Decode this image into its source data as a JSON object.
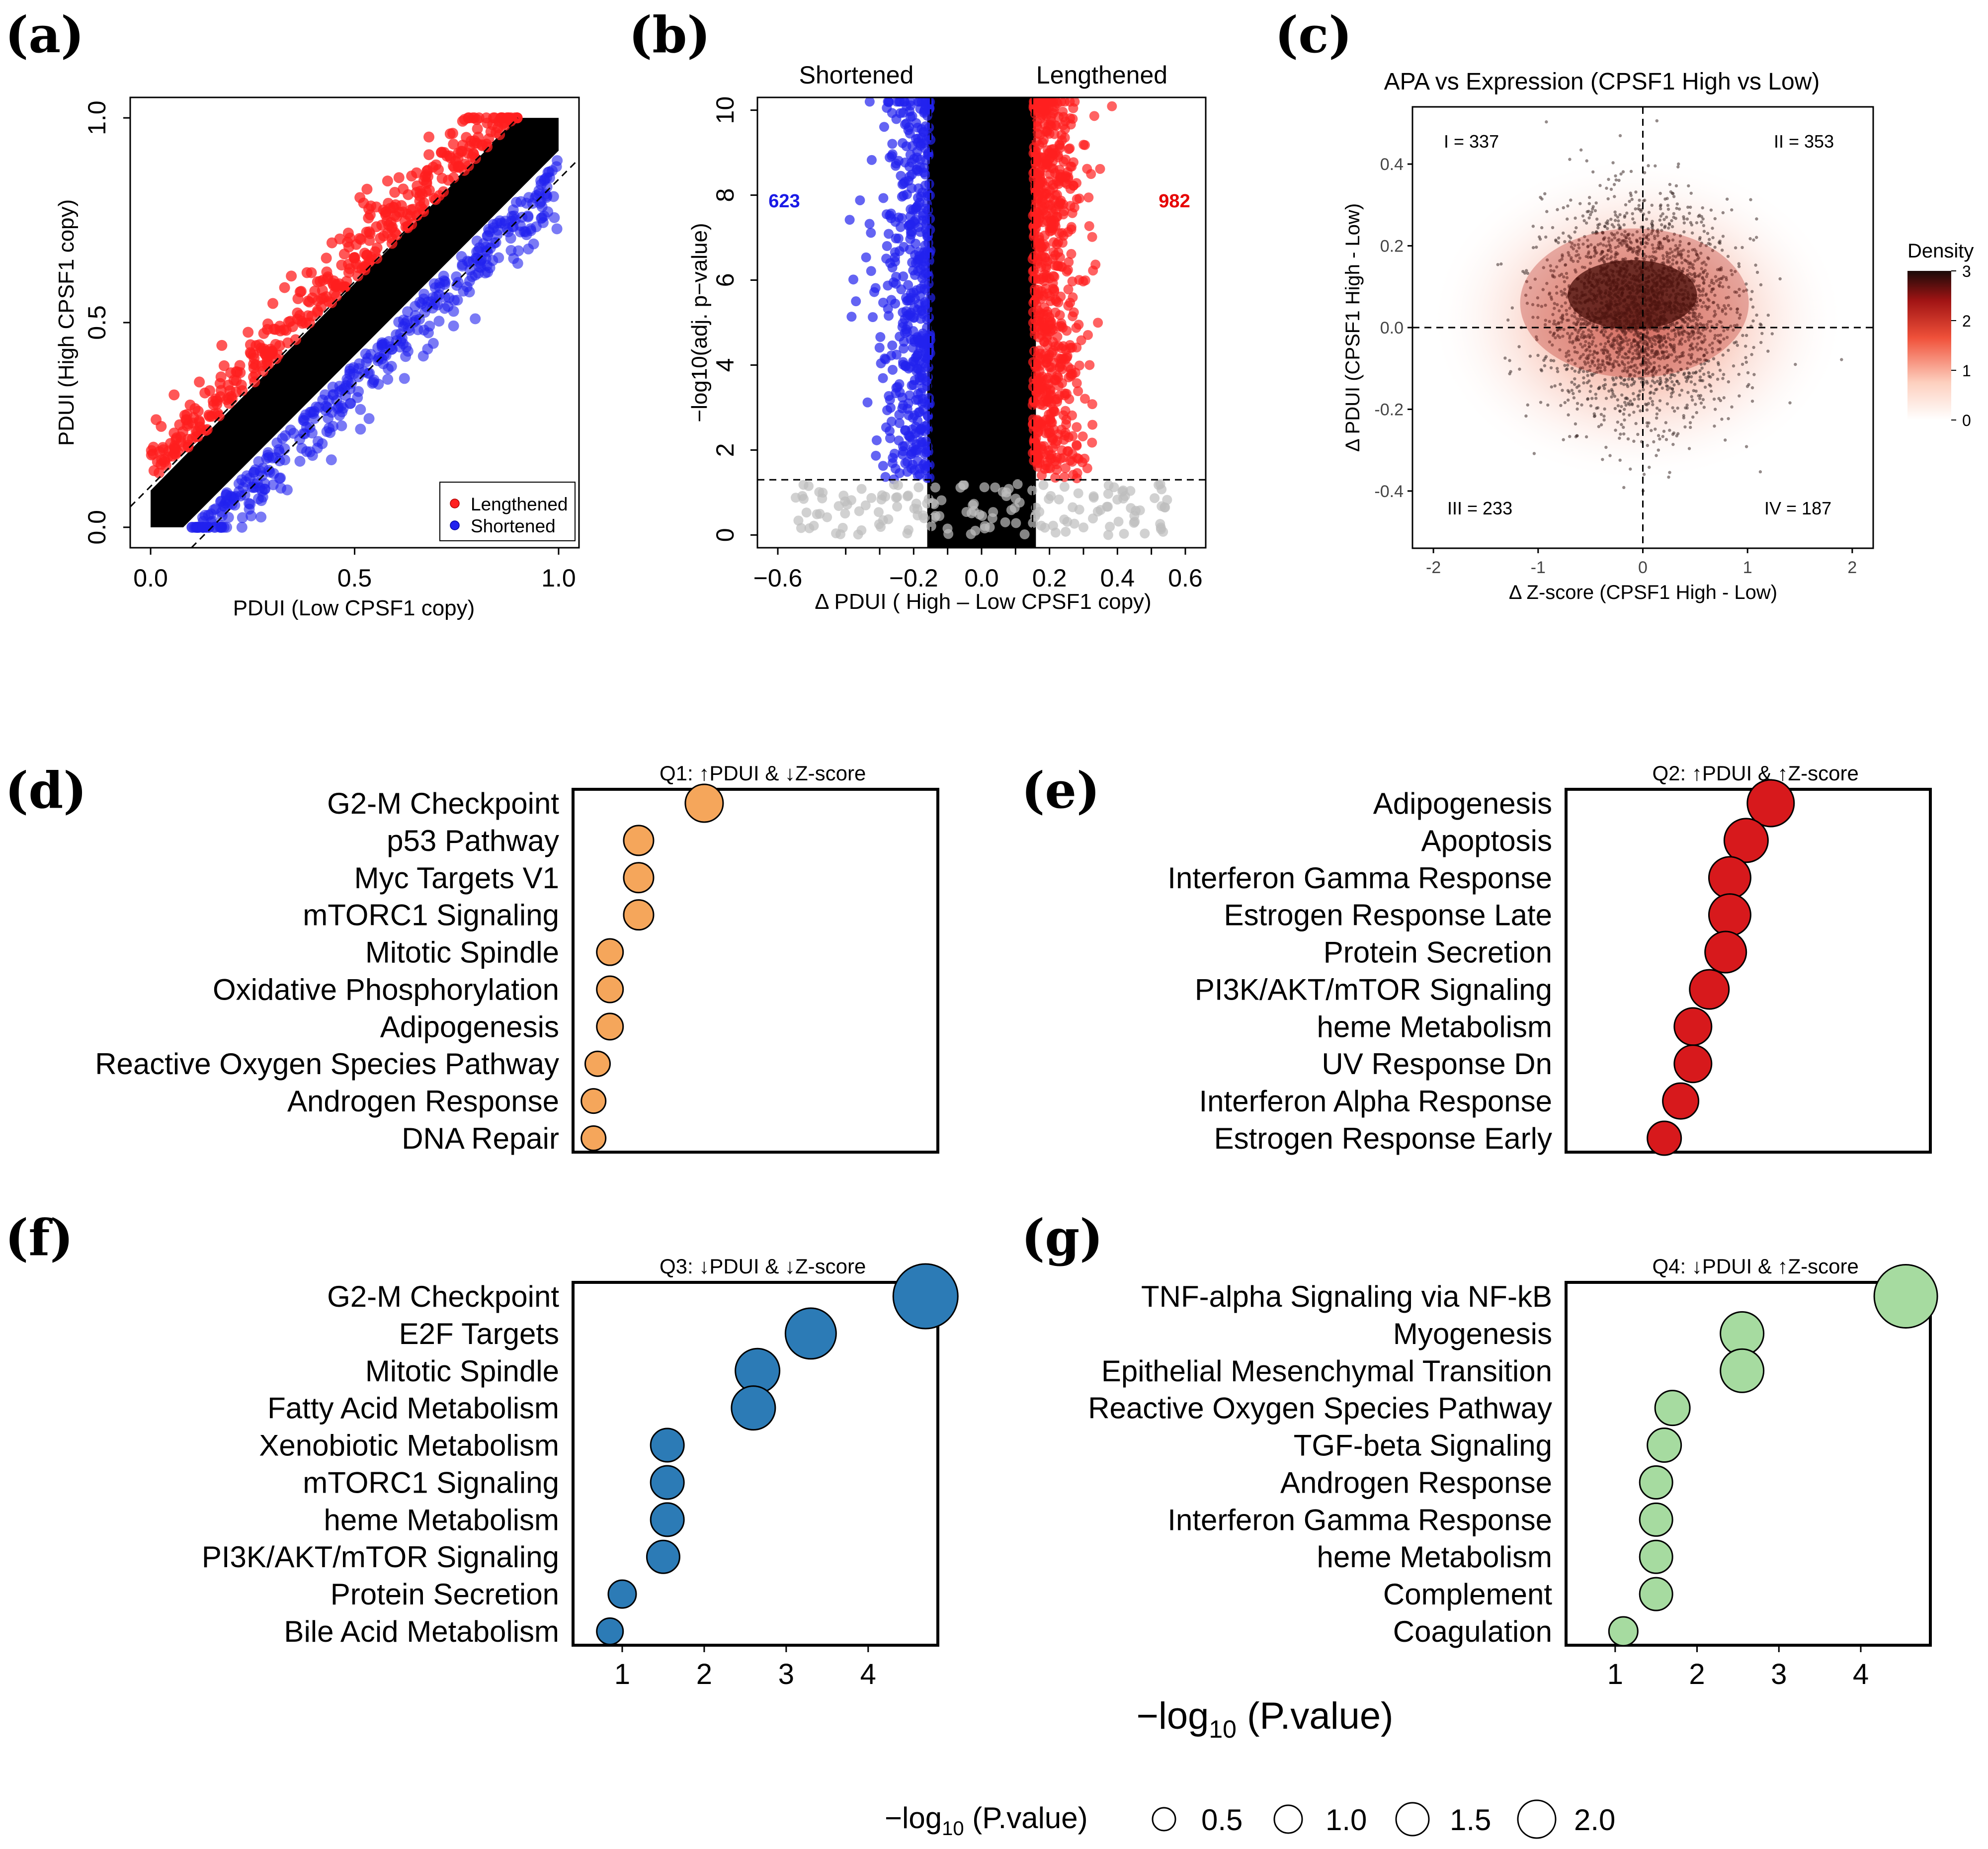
{
  "colors": {
    "red": "#ff1f1f",
    "blue": "#2222ee",
    "black": "#000000",
    "grey": "#bdbdbd",
    "orange": "#f5a65b",
    "crimson": "#d7191c",
    "steel": "#2c7bb6",
    "mint": "#a6dba0",
    "label_blue": "#1a1ae6",
    "label_red": "#e60000"
  },
  "chart_data": [
    {
      "id": "a",
      "panel_label": "(a)",
      "type": "scatter",
      "xlabel": "PDUI (Low CPSF1 copy)",
      "ylabel": "PDUI (High CPSF1 copy)",
      "xlim": [
        -0.05,
        1.05
      ],
      "ylim": [
        -0.05,
        1.05
      ],
      "xticks": [
        "0.0",
        "0.5",
        "1.0"
      ],
      "yticks": [
        "0.0",
        "0.5",
        "1.0"
      ],
      "legend": [
        "Lengthened",
        "Shortened"
      ],
      "legend_position": "bottom-right",
      "reference_lines": [
        "y = x + 0.1",
        "y = x - 0.1"
      ]
    },
    {
      "id": "b",
      "panel_label": "(b)",
      "type": "scatter",
      "xlabel": "Δ PDUI ( High – Low CPSF1 copy)",
      "ylabel": "−log10(adj. p−value)",
      "xlim": [
        -0.66,
        0.66
      ],
      "ylim": [
        -0.3,
        10.3
      ],
      "xticks": [
        "−0.6",
        "−0.2",
        "0.0",
        "0.2",
        "0.4",
        "0.6"
      ],
      "yticks": [
        "0",
        "2",
        "4",
        "6",
        "8",
        "10"
      ],
      "header_left": "Shortened",
      "header_right": "Lengthened",
      "count_shortened": "623",
      "count_lengthened": "982",
      "threshold_x": 0.15,
      "threshold_y": 1.3
    },
    {
      "id": "c",
      "panel_label": "(c)",
      "type": "scatter",
      "title": "APA vs Expression (CPSF1 High vs Low)",
      "xlabel": "Δ Z-score (CPSF1 High - Low)",
      "ylabel": "Δ PDUI (CPSF1 High - Low)",
      "xlim": [
        -2.2,
        2.2
      ],
      "ylim": [
        -0.54,
        0.54
      ],
      "xticks": [
        "-2",
        "-1",
        "0",
        "1",
        "2"
      ],
      "yticks": [
        "-0.4",
        "-0.2",
        "0.0",
        "0.2",
        "0.4"
      ],
      "quadrants": [
        "I = 337",
        "II = 353",
        "III = 233",
        "IV = 187"
      ],
      "density_legend": {
        "title": "Density",
        "ticks": [
          "3",
          "2",
          "1",
          "0"
        ]
      }
    },
    {
      "id": "d",
      "panel_label": "(d)",
      "type": "dotplot",
      "title": "Q1: ↑PDUI & ↓Z-score",
      "terms": [
        "G2-M Checkpoint",
        "p53 Pathway",
        "Myc Targets V1",
        "mTORC1 Signaling",
        "Mitotic Spindle",
        "Oxidative Phosphorylation",
        "Adipogenesis",
        "Reactive Oxygen Species Pathway",
        "Androgen Response",
        "DNA Repair"
      ],
      "values": [
        2.0,
        1.2,
        1.2,
        1.2,
        0.85,
        0.85,
        0.85,
        0.7,
        0.65,
        0.65
      ]
    },
    {
      "id": "e",
      "panel_label": "(e)",
      "type": "dotplot",
      "title": "Q2: ↑PDUI & ↑Z-score",
      "terms": [
        "Adipogenesis",
        "Apoptosis",
        "Interferon Gamma Response",
        "Estrogen Response Late",
        "Protein Secretion",
        "PI3K/AKT/mTOR  Signaling",
        "heme Metabolism",
        "UV Response Dn",
        "Interferon Alpha Response",
        "Estrogen Response Early"
      ],
      "values": [
        2.9,
        2.6,
        2.4,
        2.4,
        2.35,
        2.15,
        1.95,
        1.95,
        1.8,
        1.6
      ]
    },
    {
      "id": "f",
      "panel_label": "(f)",
      "type": "dotplot",
      "title": "Q3: ↓PDUI & ↓Z-score",
      "terms": [
        "G2-M Checkpoint",
        "E2F Targets",
        "Mitotic Spindle",
        "Fatty Acid Metabolism",
        "Xenobiotic Metabolism",
        "mTORC1 Signaling",
        "heme Metabolism",
        "PI3K/AKT/mTOR  Signaling",
        "Protein Secretion",
        "Bile Acid Metabolism"
      ],
      "values": [
        4.7,
        3.3,
        2.65,
        2.6,
        1.55,
        1.55,
        1.55,
        1.5,
        1.0,
        0.85
      ]
    },
    {
      "id": "g",
      "panel_label": "(g)",
      "type": "dotplot",
      "title": "Q4: ↓PDUI & ↑Z-score",
      "terms": [
        "TNF-alpha Signaling via NF-kB",
        "Myogenesis",
        "Epithelial Mesenchymal Transition",
        "Reactive Oxygen Species Pathway",
        "TGF-beta Signaling",
        "Androgen Response",
        "Interferon Gamma Response",
        "heme Metabolism",
        "Complement",
        "Coagulation"
      ],
      "values": [
        4.55,
        2.55,
        2.55,
        1.7,
        1.6,
        1.5,
        1.5,
        1.5,
        1.5,
        1.1
      ]
    },
    {
      "id": "dotplot_shared",
      "type": "dotplot-axis",
      "xticks": [
        "1",
        "2",
        "3",
        "4"
      ],
      "xlim": [
        0.4,
        4.85
      ],
      "xlabel_main": "−log",
      "xlabel_sub": "10",
      "xlabel_tail": " (P.value)",
      "size_legend": {
        "label_main": "−log",
        "label_sub": "10",
        "label_tail": " (P.value)",
        "values": [
          "0.5",
          "1.0",
          "1.5",
          "2.0"
        ]
      }
    }
  ]
}
